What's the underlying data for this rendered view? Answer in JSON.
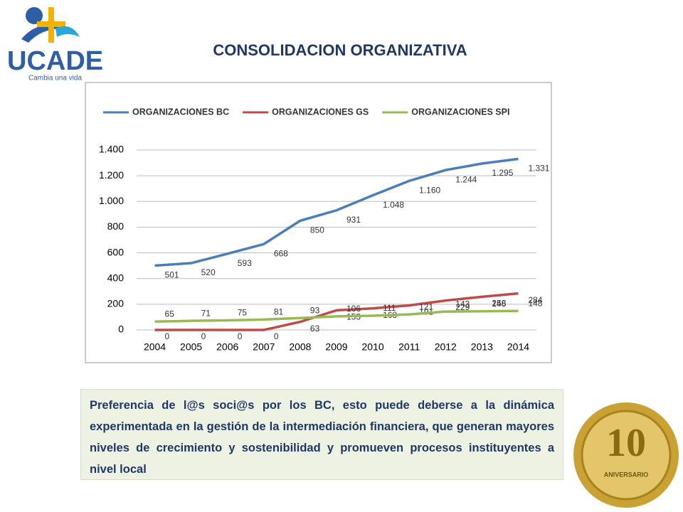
{
  "header": {
    "title": "CONSOLIDACION ORGANIZATIVA",
    "logo": "UCADE",
    "logo_tagline": "Cambia una vida"
  },
  "chart_data": {
    "type": "line",
    "categories": [
      "2004",
      "2005",
      "2006",
      "2007",
      "2008",
      "2009",
      "2010",
      "2011",
      "2012",
      "2013",
      "2014"
    ],
    "series": [
      {
        "name": "ORGANIZACIONES BC",
        "color": "#4a7ebb",
        "values": [
          501,
          520,
          593,
          668,
          850,
          931,
          1048,
          1160,
          1244,
          1295,
          1331
        ],
        "value_labels": [
          "501",
          "520",
          "593",
          "668",
          "850",
          "931",
          "1.048",
          "1.160",
          "1.244",
          "1.295",
          "1.331"
        ]
      },
      {
        "name": "ORGANIZACIONES GS",
        "color": "#be4b48",
        "values": [
          0,
          0,
          0,
          0,
          63,
          153,
          168,
          191,
          229,
          258,
          284
        ]
      },
      {
        "name": "ORGANIZACIONES SPI",
        "color": "#98b954",
        "values": [
          65,
          71,
          75,
          81,
          93,
          106,
          111,
          121,
          143,
          145,
          148
        ]
      }
    ],
    "ylim": [
      0,
      1400
    ],
    "yticks": [
      0,
      200,
      400,
      600,
      800,
      {
        "value": 1000,
        "label": "1.000"
      },
      {
        "value": 1200,
        "label": "1.200"
      },
      {
        "value": 1400,
        "label": "1.400"
      }
    ],
    "grid": true,
    "legend": "top"
  },
  "note": {
    "text": "Preferencia de l@s soci@s por los BC, esto puede deberse a la dinámica experimentada en la gestión de la intermediación financiera, que generan mayores niveles de crecimiento y sostenibilidad y promueven procesos instituyentes a nivel local"
  },
  "badge": {
    "number": "10",
    "label": "ANIVERSARIO"
  }
}
